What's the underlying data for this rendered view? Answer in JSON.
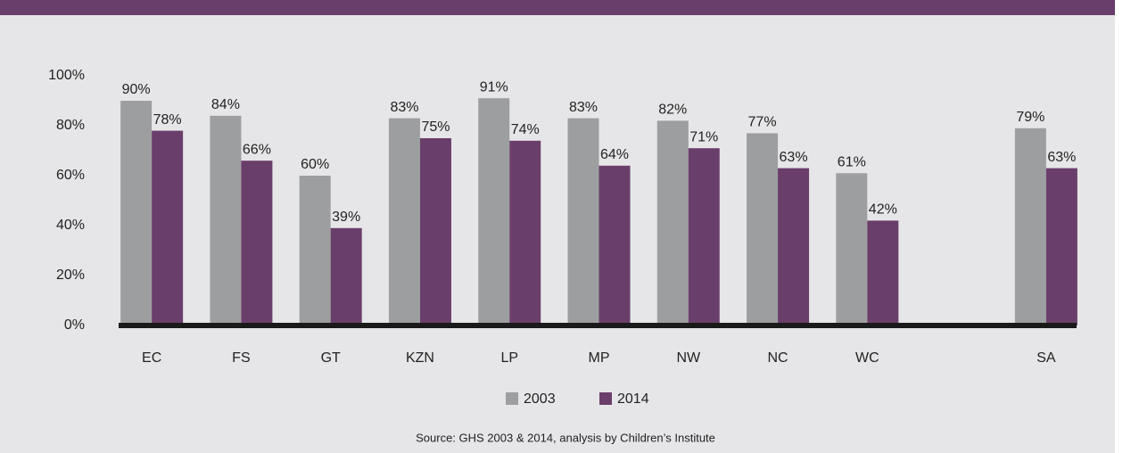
{
  "chart_data": {
    "type": "bar",
    "categories": [
      "EC",
      "FS",
      "GT",
      "KZN",
      "LP",
      "MP",
      "NW",
      "NC",
      "WC",
      null,
      "SA"
    ],
    "series": [
      {
        "name": "2003",
        "color": "#9d9ea0",
        "values": [
          90,
          84,
          60,
          83,
          91,
          83,
          82,
          77,
          61,
          null,
          79
        ],
        "value_labels": [
          "90%",
          "84%",
          "60%",
          "83%",
          "91%",
          "83%",
          "82%",
          "77%",
          "61%",
          null,
          "79%"
        ]
      },
      {
        "name": "2014",
        "color": "#6a3e6a",
        "values": [
          78,
          66,
          39,
          75,
          74,
          64,
          71,
          63,
          42,
          null,
          63
        ],
        "value_labels": [
          "78%",
          "66%",
          "39%",
          "75%",
          "74%",
          "64%",
          "71%",
          "63%",
          "42%",
          null,
          "63%"
        ]
      }
    ],
    "ylim": [
      0,
      100
    ],
    "yticks": [
      {
        "value": 0,
        "label": "0%"
      },
      {
        "value": 20,
        "label": "20%"
      },
      {
        "value": 40,
        "label": "40%"
      },
      {
        "value": 60,
        "label": "60%"
      },
      {
        "value": 80,
        "label": "80%"
      },
      {
        "value": 100,
        "label": "100%"
      }
    ],
    "grid": false,
    "legend": "bottom",
    "source": "Source: GHS 2003 & 2014, analysis by Children’s Institute"
  }
}
